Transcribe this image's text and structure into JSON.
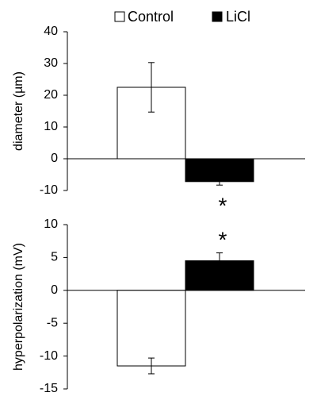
{
  "chart_data": [
    {
      "type": "bar",
      "y_label": "diameter (µm)",
      "categories": [
        null
      ],
      "series": [
        {
          "name": "Control",
          "color": "#ffffff",
          "values": [
            22.5
          ],
          "errors": [
            7.8
          ]
        },
        {
          "name": "LiCl",
          "color": "#000000",
          "values": [
            -7.2
          ],
          "errors": [
            1.1
          ]
        }
      ],
      "ylim": [
        -10,
        40
      ],
      "yticks": [
        -10,
        0,
        10,
        20,
        30,
        40
      ],
      "annotation": "*"
    },
    {
      "type": "bar",
      "y_label": "hyperpolarization (mV)",
      "categories": [
        null
      ],
      "series": [
        {
          "name": "Control",
          "color": "#ffffff",
          "values": [
            -11.5
          ],
          "errors": [
            1.2
          ]
        },
        {
          "name": "LiCl",
          "color": "#000000",
          "values": [
            4.5
          ],
          "errors": [
            1.2
          ]
        }
      ],
      "ylim": [
        -15,
        10
      ],
      "yticks": [
        -15,
        -10,
        -5,
        0,
        5,
        10
      ],
      "annotation": "*"
    }
  ]
}
